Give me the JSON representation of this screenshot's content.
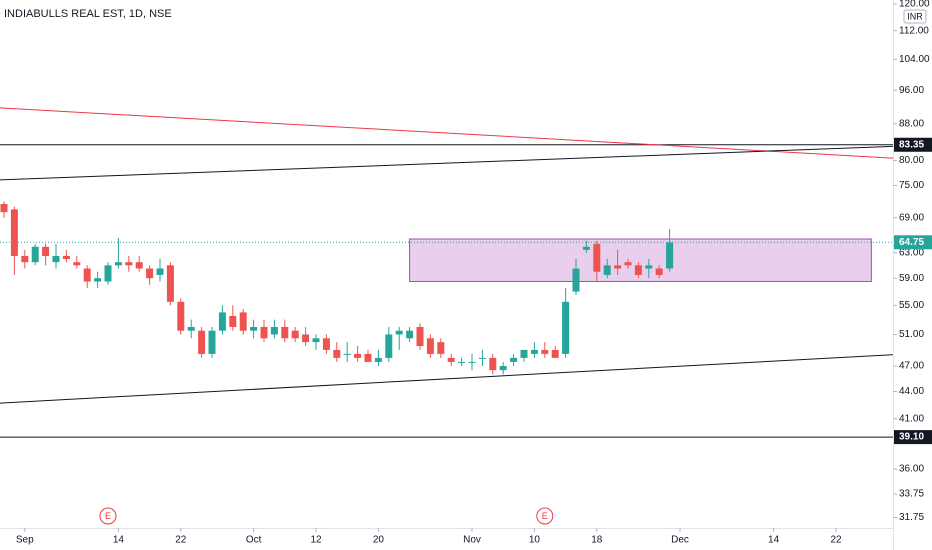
{
  "chart_data": {
    "type": "candlestick",
    "title": "INDIABULLS REAL EST, 1D, NSE",
    "currency": "INR",
    "log_scale": true,
    "ylim": [
      30.9,
      121.25
    ],
    "yticks": [
      {
        "value": 31.75,
        "label": "31.75"
      },
      {
        "value": 33.75,
        "label": "33.75"
      },
      {
        "value": 36,
        "label": "36.00"
      },
      {
        "value": 41,
        "label": "41.00"
      },
      {
        "value": 44,
        "label": "44.00"
      },
      {
        "value": 47,
        "label": "47.00"
      },
      {
        "value": 51,
        "label": "51.00"
      },
      {
        "value": 55,
        "label": "55.00"
      },
      {
        "value": 59,
        "label": "59.00"
      },
      {
        "value": 63,
        "label": "63.00"
      },
      {
        "value": 69,
        "label": "69.00"
      },
      {
        "value": 75,
        "label": "75.00"
      },
      {
        "value": 80,
        "label": "80.00"
      },
      {
        "value": 88,
        "label": "88.00"
      },
      {
        "value": 96,
        "label": "96.00"
      },
      {
        "value": 104,
        "label": "104.00"
      },
      {
        "value": 112,
        "label": "112.00"
      },
      {
        "value": 120,
        "label": "120.00"
      }
    ],
    "categories": [
      null,
      null,
      "Sep",
      null,
      null,
      null,
      null,
      null,
      null,
      null,
      null,
      "14",
      null,
      null,
      null,
      null,
      null,
      "22",
      null,
      null,
      null,
      null,
      null,
      null,
      "Oct",
      null,
      null,
      null,
      null,
      null,
      "12",
      null,
      null,
      null,
      null,
      null,
      "20",
      null,
      null,
      null,
      null,
      null,
      null,
      null,
      null,
      "Nov",
      null,
      null,
      null,
      null,
      null,
      "10",
      null,
      null,
      null,
      null,
      null,
      "18",
      null,
      null,
      null,
      null,
      null,
      null,
      null,
      "Dec",
      null,
      null,
      null,
      null,
      null,
      null,
      null,
      null,
      "14",
      null,
      null,
      null,
      null,
      null,
      "22",
      null,
      null,
      null,
      null
    ],
    "up_color": "#26a69a",
    "down_color": "#ef5350",
    "open": [
      71.5,
      70.5,
      62.5,
      61.5,
      64,
      61.5,
      62.5,
      61.5,
      60.5,
      58.5,
      58.5,
      61,
      61.5,
      61.5,
      60.5,
      59.5,
      61,
      55.5,
      51.5,
      51.5,
      48.5,
      51.5,
      53.5,
      54,
      51.5,
      52,
      51,
      52,
      51.5,
      51,
      50,
      50.5,
      49,
      48.5,
      48.5,
      48.5,
      47.5,
      48,
      51,
      50.5,
      52,
      50.5,
      50,
      48,
      47.5,
      47.5,
      48,
      48,
      46.5,
      47.5,
      48,
      48.5,
      49,
      49,
      48.5,
      57,
      63.5,
      64.5,
      59.5,
      61,
      61.5,
      61,
      60.5,
      60.5,
      60.5,
      null,
      null,
      null,
      null,
      null,
      null,
      null,
      null,
      null,
      null,
      null,
      null,
      null,
      null,
      null,
      null,
      null,
      null,
      null,
      null
    ],
    "high": [
      72,
      71,
      63.5,
      64.5,
      64.5,
      64.5,
      63.5,
      62.5,
      61,
      60,
      61.5,
      65.5,
      62.5,
      62.5,
      61,
      62,
      61.5,
      56,
      53,
      52,
      52,
      55,
      55,
      54.5,
      53,
      53,
      53,
      53,
      52,
      52,
      51,
      51,
      50,
      50,
      49.5,
      49,
      49,
      52,
      52,
      52,
      52.5,
      51,
      50.5,
      48.5,
      48,
      48.5,
      49,
      48.5,
      47.5,
      48.5,
      49,
      50,
      50,
      49.5,
      57.5,
      62,
      65,
      65,
      62,
      63.5,
      62,
      61.5,
      62,
      61,
      67,
      null,
      null,
      null,
      null,
      null,
      null,
      null,
      null,
      null,
      null,
      null,
      null,
      null,
      null,
      null,
      null,
      null,
      null,
      null,
      null
    ],
    "low": [
      69,
      59.5,
      60.5,
      61,
      61,
      60.5,
      61.5,
      60.5,
      57.5,
      57.5,
      58,
      60.5,
      60,
      60,
      58,
      58.5,
      55,
      51,
      50.5,
      48,
      48,
      51,
      51.5,
      51,
      50.5,
      50,
      50.5,
      50,
      50,
      49.5,
      49,
      48.5,
      47.5,
      47.5,
      47.5,
      47.5,
      47,
      47.5,
      49,
      50,
      49,
      48,
      48,
      47,
      47,
      46.5,
      47,
      46,
      46,
      47,
      47.5,
      48,
      48,
      48,
      48,
      56.5,
      63,
      58.5,
      59,
      59.5,
      60.5,
      59,
      59,
      59,
      60,
      null,
      null,
      null,
      null,
      null,
      null,
      null,
      null,
      null,
      null,
      null,
      null,
      null,
      null,
      null,
      null,
      null,
      null,
      null,
      null
    ],
    "close": [
      70,
      62.5,
      61.5,
      64,
      62.5,
      62.5,
      62,
      61,
      58.5,
      59,
      61,
      61.5,
      61,
      60.5,
      59,
      60.5,
      55.5,
      51.5,
      52,
      48.5,
      51.5,
      54,
      52,
      51.5,
      52,
      50.5,
      52,
      50.5,
      50.5,
      50,
      50.5,
      49,
      48,
      48.5,
      48,
      47.5,
      48,
      51,
      51.5,
      51.5,
      49.5,
      48.5,
      48.5,
      47.5,
      47.5,
      47.5,
      48,
      46.5,
      47,
      48,
      49,
      49,
      48.5,
      48,
      55.5,
      60.5,
      64,
      60,
      61,
      60.5,
      61,
      59.5,
      61,
      59.5,
      64.75,
      null,
      null,
      null,
      null,
      null,
      null,
      null,
      null,
      null,
      null,
      null,
      null,
      null,
      null,
      null,
      null,
      null,
      null,
      null,
      null
    ],
    "trend_lines": [
      {
        "color": "#f23645",
        "x": [
          -0.4,
          85.5
        ],
        "y": [
          91.7,
          80.5
        ]
      },
      {
        "color": "#131722",
        "x": [
          -0.4,
          85.5
        ],
        "y": [
          76.1,
          83
        ]
      },
      {
        "color": "#131722",
        "x": [
          -0.4,
          85.5
        ],
        "y": [
          42.7,
          48.4
        ]
      }
    ],
    "horizontal_lines": [
      {
        "value": 83.35
      },
      {
        "value": 39.1,
        "label": "39.10"
      }
    ],
    "last_price": 64.75,
    "zones": [
      {
        "x": [
          39,
          83.4
        ],
        "y": [
          58.5,
          65.3
        ],
        "color": "#ce93d8"
      }
    ],
    "events": [
      {
        "x": 10,
        "label": "E"
      },
      {
        "x": 52,
        "label": "E"
      }
    ]
  }
}
